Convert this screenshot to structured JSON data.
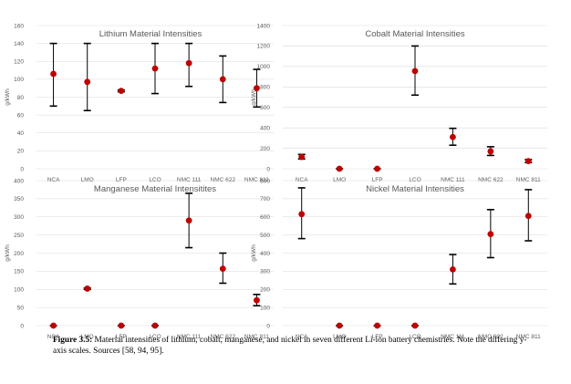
{
  "chart_data": [
    {
      "type": "scatter",
      "title": "Lithium Material Intensities",
      "ylabel": "g/kWh",
      "ylim": [
        0,
        160
      ],
      "yticks": [
        0,
        20,
        40,
        60,
        80,
        100,
        120,
        140,
        160
      ],
      "categories": [
        "NCA",
        "LMO",
        "LFP",
        "LCO",
        "NMC 111",
        "NMC 622",
        "NMC 811"
      ],
      "values": [
        106,
        97,
        87,
        112,
        118,
        100,
        90
      ],
      "low": [
        70,
        65,
        86,
        84,
        92,
        74,
        69
      ],
      "high": [
        140,
        140,
        88,
        140,
        140,
        126,
        111
      ],
      "grid": "horizontal",
      "point_color": "#c00000"
    },
    {
      "type": "scatter",
      "title": "Cobalt Material Intensities",
      "ylabel": "g/kWh",
      "ylim": [
        0,
        1400
      ],
      "yticks": [
        0,
        200,
        400,
        600,
        800,
        1000,
        1200,
        1400
      ],
      "categories": [
        "NCA",
        "LMO",
        "LFP",
        "LCO",
        "NMC 111",
        "NMC 622",
        "NMC 811"
      ],
      "values": [
        115,
        0,
        0,
        955,
        310,
        170,
        75
      ],
      "low": [
        95,
        0,
        0,
        720,
        230,
        130,
        60
      ],
      "high": [
        140,
        0,
        0,
        1200,
        395,
        215,
        90
      ],
      "grid": "horizontal",
      "point_color": "#c00000"
    },
    {
      "type": "scatter",
      "title": "Manganese Material Intensitites",
      "ylabel": "g/kWh",
      "ylim": [
        0,
        400
      ],
      "yticks": [
        0,
        50,
        100,
        150,
        200,
        250,
        300,
        350,
        400
      ],
      "categories": [
        "NCA",
        "LMO",
        "LFP",
        "LCO",
        "NMC 111",
        "NMC 622",
        "NMC 811"
      ],
      "values": [
        0,
        102,
        0,
        0,
        290,
        157,
        70
      ],
      "low": [
        0,
        100,
        0,
        0,
        215,
        117,
        55
      ],
      "high": [
        0,
        104,
        0,
        0,
        365,
        200,
        86
      ],
      "grid": "horizontal",
      "point_color": "#c00000"
    },
    {
      "type": "scatter",
      "title": "Nickel Material Intensities",
      "ylabel": "g/kWh",
      "ylim": [
        0,
        800
      ],
      "yticks": [
        0,
        100,
        200,
        300,
        400,
        500,
        600,
        700,
        800
      ],
      "categories": [
        "NCA",
        "LMO",
        "LFP",
        "LCO",
        "NMC 111",
        "NMC 622",
        "NMC 811"
      ],
      "values": [
        615,
        0,
        0,
        0,
        310,
        505,
        605
      ],
      "low": [
        480,
        0,
        0,
        0,
        230,
        375,
        468
      ],
      "high": [
        760,
        0,
        0,
        0,
        392,
        640,
        750
      ],
      "grid": "horizontal",
      "point_color": "#c00000"
    }
  ],
  "caption": {
    "label": "Figure 3.5:",
    "text": " Material intensities of lithium, cobalt, manganese, and nickel in seven different Li-ion battery chemistries. Note the differing y-axis scales. Sources [58, 94, 95]."
  }
}
